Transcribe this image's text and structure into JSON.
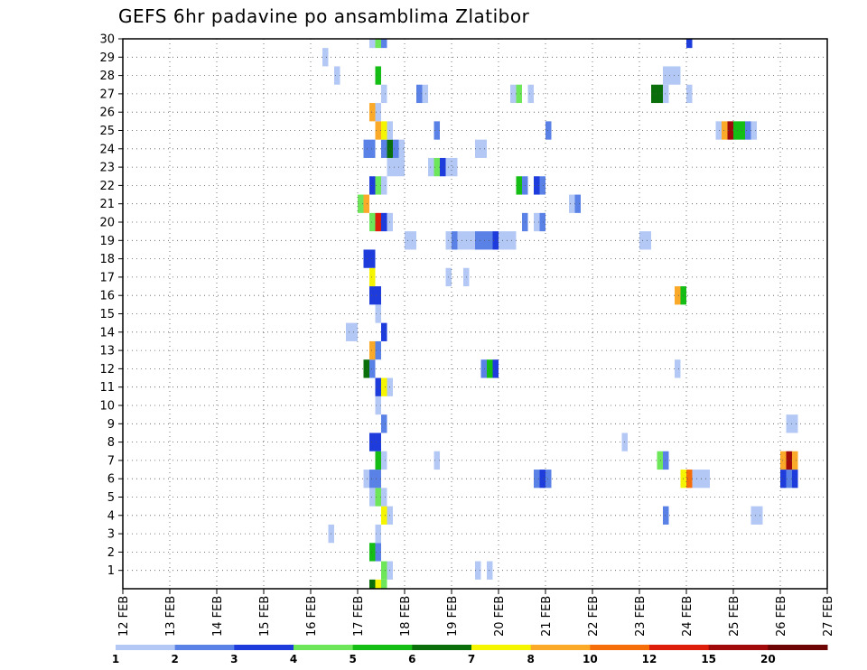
{
  "chart_data": {
    "type": "heatmap",
    "title": "GEFS 6hr padavine po ansamblima Zlatibor",
    "x_labels": [
      "12 FEB",
      "13 FEB",
      "14 FEB",
      "15 FEB",
      "16 FEB",
      "17 FEB",
      "18 FEB",
      "19 FEB",
      "20 FEB",
      "21 FEB",
      "22 FEB",
      "23 FEB",
      "24 FEB",
      "25 FEB",
      "26 FEB",
      "27 FEB"
    ],
    "y_labels": [
      "1",
      "2",
      "3",
      "4",
      "5",
      "6",
      "7",
      "8",
      "9",
      "10",
      "11",
      "12",
      "13",
      "14",
      "15",
      "16",
      "17",
      "18",
      "19",
      "20",
      "21",
      "22",
      "23",
      "24",
      "25",
      "26",
      "27",
      "28",
      "29",
      "30"
    ],
    "grid": true,
    "colorbar": {
      "labels": [
        "1",
        "2",
        "3",
        "4",
        "5",
        "6",
        "7",
        "8",
        "10",
        "12",
        "15",
        "20"
      ],
      "colors": [
        "#b4c8f5",
        "#5a82e6",
        "#1e3cdc",
        "#6ee65a",
        "#14be14",
        "#0a6e0a",
        "#f5f500",
        "#faaa28",
        "#f56e0a",
        "#dc1e0a",
        "#a00a0a",
        "#6e0505"
      ]
    },
    "cells": [
      {
        "m": 0,
        "s": [
          [
            58,
            "#0a6e0a"
          ],
          [
            59,
            "#f5f500"
          ],
          [
            60,
            "#6ee65a"
          ]
        ]
      },
      {
        "m": 1,
        "s": [
          [
            60,
            "#6ee65a"
          ],
          [
            61,
            "#b4c8f5"
          ],
          [
            76,
            "#b4c8f5"
          ],
          [
            78,
            "#b4c8f5"
          ]
        ]
      },
      {
        "m": 2,
        "s": [
          [
            58,
            "#14be14"
          ],
          [
            59,
            "#5a82e6"
          ]
        ]
      },
      {
        "m": 3,
        "s": [
          [
            51,
            "#b4c8f5"
          ],
          [
            59,
            "#b4c8f5"
          ]
        ]
      },
      {
        "m": 4,
        "s": [
          [
            60,
            "#f5f500"
          ],
          [
            61,
            "#b4c8f5"
          ],
          [
            108,
            "#5a82e6"
          ],
          [
            123,
            "#b4c8f5"
          ],
          [
            124,
            "#b4c8f5"
          ]
        ]
      },
      {
        "m": 5,
        "s": [
          [
            58,
            "#b4c8f5"
          ],
          [
            59,
            "#6ee65a"
          ],
          [
            60,
            "#b4c8f5"
          ]
        ]
      },
      {
        "m": 6,
        "s": [
          [
            57,
            "#b4c8f5"
          ],
          [
            58,
            "#5a82e6"
          ],
          [
            59,
            "#5a82e6"
          ],
          [
            86,
            "#5a82e6"
          ],
          [
            87,
            "#1e3cdc"
          ],
          [
            88,
            "#5a82e6"
          ],
          [
            111,
            "#f5f500"
          ],
          [
            112,
            "#f56e0a"
          ],
          [
            113,
            "#b4c8f5"
          ],
          [
            114,
            "#b4c8f5"
          ],
          [
            115,
            "#b4c8f5"
          ],
          [
            128,
            "#1e3cdc"
          ],
          [
            129,
            "#5a82e6"
          ],
          [
            130,
            "#1e3cdc"
          ]
        ]
      },
      {
        "m": 7,
        "s": [
          [
            59,
            "#14be14"
          ],
          [
            60,
            "#b4c8f5"
          ],
          [
            69,
            "#b4c8f5"
          ],
          [
            107,
            "#6ee65a"
          ],
          [
            108,
            "#5a82e6"
          ],
          [
            128,
            "#faaa28"
          ],
          [
            129,
            "#a00a0a"
          ],
          [
            130,
            "#faaa28"
          ]
        ]
      },
      {
        "m": 8,
        "s": [
          [
            58,
            "#1e3cdc"
          ],
          [
            59,
            "#1e3cdc"
          ],
          [
            101,
            "#b4c8f5"
          ]
        ]
      },
      {
        "m": 9,
        "s": [
          [
            60,
            "#5a82e6"
          ],
          [
            129,
            "#b4c8f5"
          ],
          [
            130,
            "#b4c8f5"
          ]
        ]
      },
      {
        "m": 10,
        "s": [
          [
            59,
            "#b4c8f5"
          ]
        ]
      },
      {
        "m": 11,
        "s": [
          [
            59,
            "#1e3cdc"
          ],
          [
            60,
            "#f5f500"
          ],
          [
            61,
            "#b4c8f5"
          ]
        ]
      },
      {
        "m": 12,
        "s": [
          [
            57,
            "#0a6e0a"
          ],
          [
            58,
            "#5a82e6"
          ],
          [
            77,
            "#5a82e6"
          ],
          [
            78,
            "#14be14"
          ],
          [
            79,
            "#1e3cdc"
          ],
          [
            110,
            "#b4c8f5"
          ]
        ]
      },
      {
        "m": 13,
        "s": [
          [
            58,
            "#faaa28"
          ],
          [
            59,
            "#5a82e6"
          ]
        ]
      },
      {
        "m": 14,
        "s": [
          [
            54,
            "#b4c8f5"
          ],
          [
            55,
            "#b4c8f5"
          ],
          [
            60,
            "#1e3cdc"
          ]
        ]
      },
      {
        "m": 15,
        "s": [
          [
            59,
            "#b4c8f5"
          ]
        ]
      },
      {
        "m": 16,
        "s": [
          [
            58,
            "#1e3cdc"
          ],
          [
            59,
            "#1e3cdc"
          ],
          [
            110,
            "#faaa28"
          ],
          [
            111,
            "#14be14"
          ]
        ]
      },
      {
        "m": 17,
        "s": [
          [
            58,
            "#f5f500"
          ],
          [
            71,
            "#b4c8f5"
          ],
          [
            74,
            "#b4c8f5"
          ]
        ]
      },
      {
        "m": 18,
        "s": [
          [
            57,
            "#1e3cdc"
          ],
          [
            58,
            "#1e3cdc"
          ]
        ]
      },
      {
        "m": 19,
        "s": [
          [
            64,
            "#b4c8f5"
          ],
          [
            65,
            "#b4c8f5"
          ],
          [
            71,
            "#b4c8f5"
          ],
          [
            72,
            "#5a82e6"
          ],
          [
            73,
            "#b4c8f5"
          ],
          [
            74,
            "#b4c8f5"
          ],
          [
            75,
            "#b4c8f5"
          ],
          [
            76,
            "#5a82e6"
          ],
          [
            77,
            "#5a82e6"
          ],
          [
            78,
            "#5a82e6"
          ],
          [
            79,
            "#1e3cdc"
          ],
          [
            80,
            "#b4c8f5"
          ],
          [
            81,
            "#b4c8f5"
          ],
          [
            82,
            "#b4c8f5"
          ],
          [
            104,
            "#b4c8f5"
          ],
          [
            105,
            "#b4c8f5"
          ]
        ]
      },
      {
        "m": 20,
        "s": [
          [
            58,
            "#6ee65a"
          ],
          [
            59,
            "#dc1e0a"
          ],
          [
            60,
            "#1e3cdc"
          ],
          [
            61,
            "#b4c8f5"
          ],
          [
            84,
            "#5a82e6"
          ],
          [
            86,
            "#b4c8f5"
          ],
          [
            87,
            "#5a82e6"
          ]
        ]
      },
      {
        "m": 21,
        "s": [
          [
            56,
            "#6ee65a"
          ],
          [
            57,
            "#faaa28"
          ],
          [
            92,
            "#b4c8f5"
          ],
          [
            93,
            "#5a82e6"
          ]
        ]
      },
      {
        "m": 22,
        "s": [
          [
            58,
            "#1e3cdc"
          ],
          [
            59,
            "#6ee65a"
          ],
          [
            60,
            "#b4c8f5"
          ],
          [
            83,
            "#14be14"
          ],
          [
            84,
            "#5a82e6"
          ],
          [
            86,
            "#1e3cdc"
          ],
          [
            87,
            "#5a82e6"
          ]
        ]
      },
      {
        "m": 23,
        "s": [
          [
            61,
            "#b4c8f5"
          ],
          [
            62,
            "#b4c8f5"
          ],
          [
            63,
            "#b4c8f5"
          ],
          [
            68,
            "#b4c8f5"
          ],
          [
            69,
            "#6ee65a"
          ],
          [
            70,
            "#1e3cdc"
          ],
          [
            71,
            "#b4c8f5"
          ],
          [
            72,
            "#b4c8f5"
          ]
        ]
      },
      {
        "m": 24,
        "s": [
          [
            57,
            "#5a82e6"
          ],
          [
            58,
            "#5a82e6"
          ],
          [
            60,
            "#5a82e6"
          ],
          [
            61,
            "#0a6e0a"
          ],
          [
            62,
            "#5a82e6"
          ],
          [
            63,
            "#b4c8f5"
          ],
          [
            76,
            "#b4c8f5"
          ],
          [
            77,
            "#b4c8f5"
          ]
        ]
      },
      {
        "m": 25,
        "s": [
          [
            59,
            "#faaa28"
          ],
          [
            60,
            "#f5f500"
          ],
          [
            61,
            "#b4c8f5"
          ],
          [
            69,
            "#5a82e6"
          ],
          [
            88,
            "#5a82e6"
          ],
          [
            117,
            "#b4c8f5"
          ],
          [
            118,
            "#faaa28"
          ],
          [
            119,
            "#a00a0a"
          ],
          [
            120,
            "#14be14"
          ],
          [
            121,
            "#14be14"
          ],
          [
            122,
            "#5a82e6"
          ],
          [
            123,
            "#b4c8f5"
          ]
        ]
      },
      {
        "m": 26,
        "s": [
          [
            58,
            "#faaa28"
          ],
          [
            59,
            "#b4c8f5"
          ]
        ]
      },
      {
        "m": 27,
        "s": [
          [
            60,
            "#b4c8f5"
          ],
          [
            66,
            "#5a82e6"
          ],
          [
            67,
            "#b4c8f5"
          ],
          [
            82,
            "#b4c8f5"
          ],
          [
            83,
            "#6ee65a"
          ],
          [
            85,
            "#b4c8f5"
          ],
          [
            106,
            "#0a6e0a"
          ],
          [
            107,
            "#0a6e0a"
          ],
          [
            108,
            "#b4c8f5"
          ],
          [
            112,
            "#b4c8f5"
          ]
        ]
      },
      {
        "m": 28,
        "s": [
          [
            52,
            "#b4c8f5"
          ],
          [
            59,
            "#14be14"
          ],
          [
            108,
            "#b4c8f5"
          ],
          [
            109,
            "#b4c8f5"
          ],
          [
            110,
            "#b4c8f5"
          ]
        ]
      },
      {
        "m": 29,
        "s": [
          [
            50,
            "#b4c8f5"
          ]
        ]
      },
      {
        "m": 30,
        "s": [
          [
            58,
            "#b4c8f5"
          ],
          [
            59,
            "#6ee65a"
          ],
          [
            60,
            "#5a82e6"
          ],
          [
            112,
            "#1e3cdc"
          ]
        ]
      }
    ]
  }
}
